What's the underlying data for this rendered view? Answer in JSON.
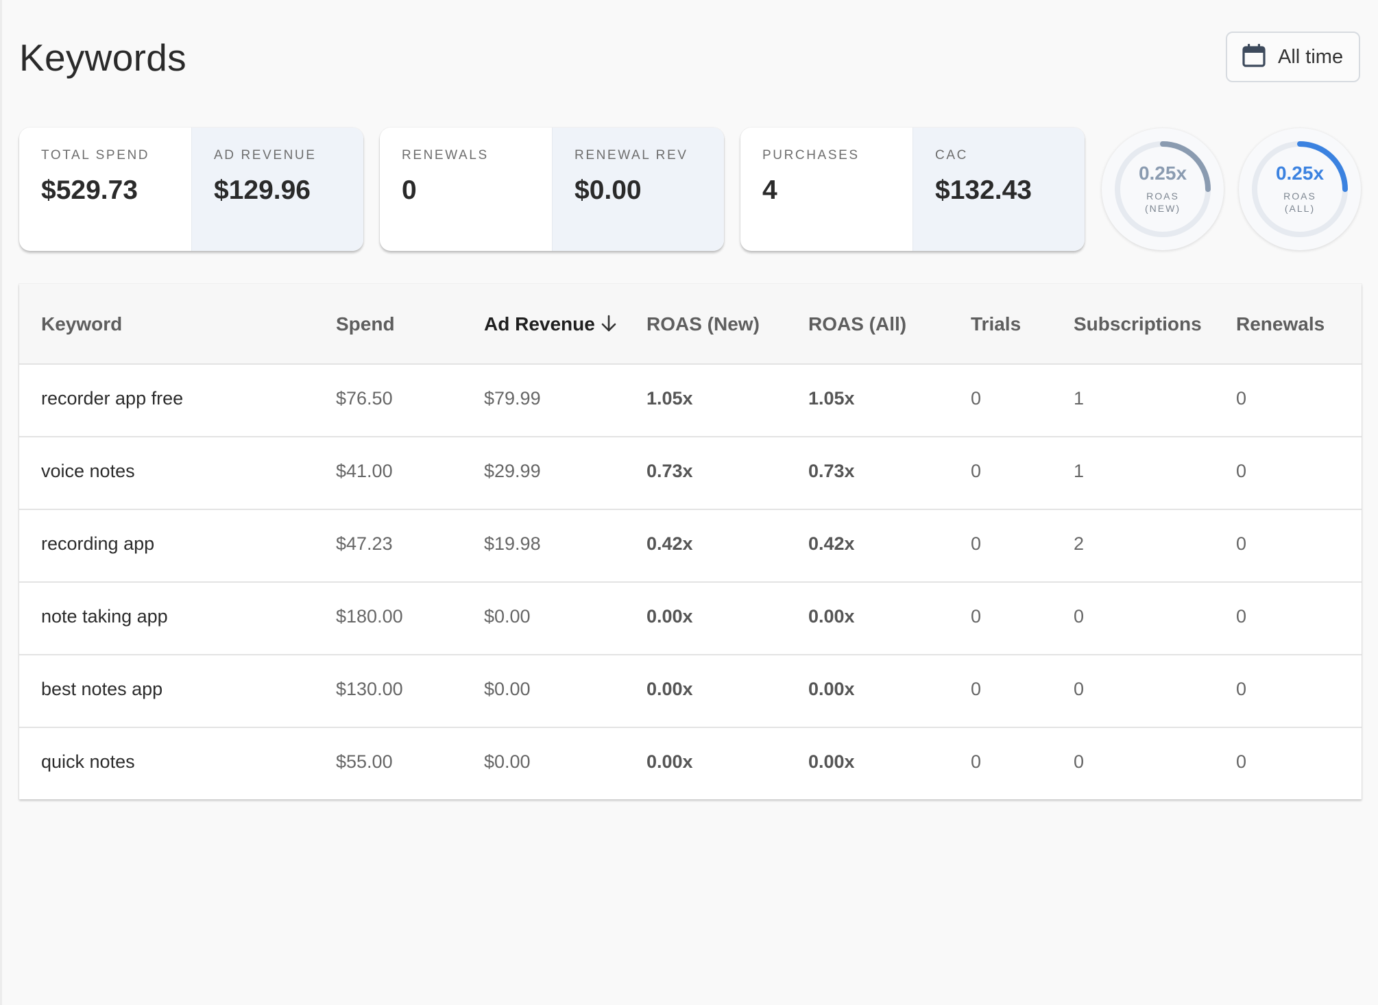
{
  "header": {
    "title": "Keywords",
    "date_range_label": "All time",
    "date_icon": "calendar-icon"
  },
  "stats": {
    "total_spend": {
      "label": "TOTAL SPEND",
      "value": "$529.73"
    },
    "ad_revenue": {
      "label": "AD REVENUE",
      "value": "$129.96"
    },
    "renewals": {
      "label": "RENEWALS",
      "value": "0"
    },
    "renewal_rev": {
      "label": "RENEWAL REV",
      "value": "$0.00"
    },
    "purchases": {
      "label": "PURCHASES",
      "value": "4"
    },
    "cac": {
      "label": "CAC",
      "value": "$132.43"
    }
  },
  "gauges": {
    "roas_new": {
      "value": "0.25x",
      "caption_line1": "ROAS",
      "caption_line2": "(NEW)",
      "fraction": 0.25,
      "color": "#8a9bb0"
    },
    "roas_all": {
      "value": "0.25x",
      "caption_line1": "ROAS",
      "caption_line2": "(ALL)",
      "fraction": 0.25,
      "color": "#3b82e0"
    }
  },
  "table": {
    "columns": {
      "keyword": "Keyword",
      "spend": "Spend",
      "ad_revenue": "Ad Revenue",
      "roas_new": "ROAS (New)",
      "roas_all": "ROAS (All)",
      "trials": "Trials",
      "subscriptions": "Subscriptions",
      "renewals": "Renewals"
    },
    "sorted_column": "ad_revenue",
    "sort_direction": "descending",
    "rows": [
      {
        "keyword": "recorder app free",
        "spend": "$76.50",
        "ad_revenue": "$79.99",
        "roas_new": "1.05x",
        "roas_all": "1.05x",
        "trials": "0",
        "subscriptions": "1",
        "renewals": "0"
      },
      {
        "keyword": "voice notes",
        "spend": "$41.00",
        "ad_revenue": "$29.99",
        "roas_new": "0.73x",
        "roas_all": "0.73x",
        "trials": "0",
        "subscriptions": "1",
        "renewals": "0"
      },
      {
        "keyword": "recording app",
        "spend": "$47.23",
        "ad_revenue": "$19.98",
        "roas_new": "0.42x",
        "roas_all": "0.42x",
        "trials": "0",
        "subscriptions": "2",
        "renewals": "0"
      },
      {
        "keyword": "note taking app",
        "spend": "$180.00",
        "ad_revenue": "$0.00",
        "roas_new": "0.00x",
        "roas_all": "0.00x",
        "trials": "0",
        "subscriptions": "0",
        "renewals": "0"
      },
      {
        "keyword": "best notes app",
        "spend": "$130.00",
        "ad_revenue": "$0.00",
        "roas_new": "0.00x",
        "roas_all": "0.00x",
        "trials": "0",
        "subscriptions": "0",
        "renewals": "0"
      },
      {
        "keyword": "quick notes",
        "spend": "$55.00",
        "ad_revenue": "$0.00",
        "roas_new": "0.00x",
        "roas_all": "0.00x",
        "trials": "0",
        "subscriptions": "0",
        "renewals": "0"
      }
    ]
  }
}
